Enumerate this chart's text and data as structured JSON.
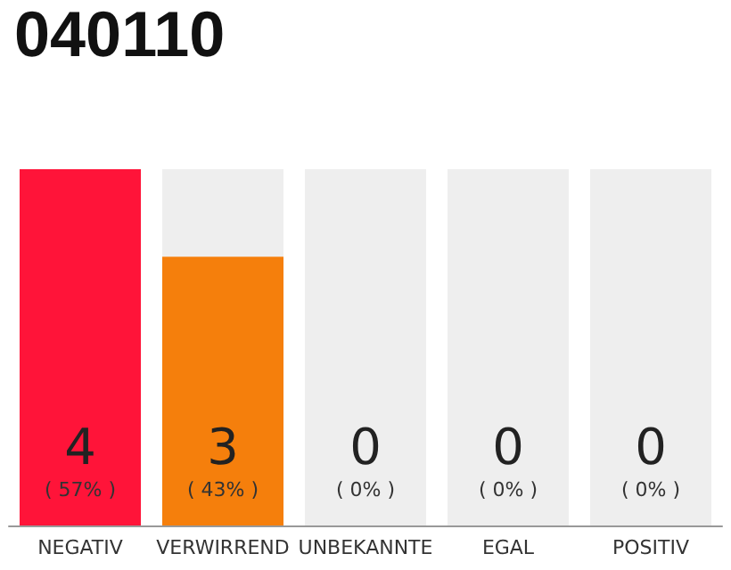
{
  "chart_data": {
    "type": "bar",
    "title": "040110",
    "stacked": true,
    "categories": [
      "NEGATIV",
      "VERWIRREND",
      "UNBEKANNTE",
      "EGAL",
      "POSITIV"
    ],
    "series": [
      {
        "values": [
          57,
          43,
          0,
          0,
          0
        ],
        "colors": [
          "#ff1439",
          "#f57f0c",
          "#f57f0c",
          "#f57f0c",
          "#f57f0c"
        ],
        "value_labels": [
          "( 57% )",
          "( 43% )",
          null,
          null,
          null
        ]
      },
      {
        "values": [
          0,
          14,
          57,
          57,
          57
        ],
        "color": "#eeeeee"
      }
    ],
    "annotations": [
      "4",
      "3",
      "0",
      "0",
      "0",
      "( 0% )",
      "( 0% )",
      "( 0% )"
    ]
  }
}
